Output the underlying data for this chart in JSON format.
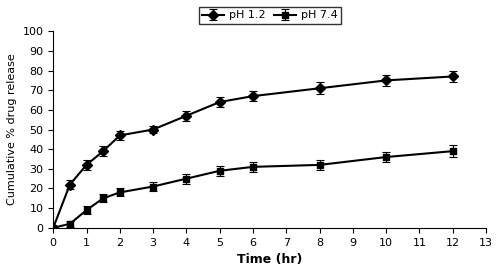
{
  "time_ph12": [
    0,
    0.5,
    1.0,
    1.5,
    2.0,
    3.0,
    4.0,
    5.0,
    6.0,
    8.0,
    10.0,
    12.0
  ],
  "values_ph12": [
    0,
    22,
    32,
    39,
    47,
    50,
    57,
    64,
    67,
    71,
    75,
    77
  ],
  "errors_ph12": [
    1.0,
    2.5,
    2.5,
    2.5,
    2.5,
    2.0,
    2.5,
    2.5,
    2.5,
    3.0,
    3.0,
    3.0
  ],
  "time_ph74": [
    0,
    0.5,
    1.0,
    1.5,
    2.0,
    3.0,
    4.0,
    5.0,
    6.0,
    8.0,
    10.0,
    12.0
  ],
  "values_ph74": [
    0,
    2,
    9,
    15,
    18,
    21,
    25,
    29,
    31,
    32,
    36,
    39
  ],
  "errors_ph74": [
    0.5,
    1.5,
    2.0,
    2.0,
    2.0,
    2.5,
    2.5,
    2.5,
    2.5,
    2.5,
    2.5,
    3.0
  ],
  "xlabel": "Time (hr)",
  "ylabel": "Cumulative % drug release",
  "legend_ph12": "pH 1.2",
  "legend_ph74": "pH 7.4",
  "xlim": [
    0,
    13
  ],
  "ylim": [
    0,
    100
  ],
  "xticks": [
    0,
    1,
    2,
    3,
    4,
    5,
    6,
    7,
    8,
    9,
    10,
    11,
    12,
    13
  ],
  "yticks": [
    0,
    10,
    20,
    30,
    40,
    50,
    60,
    70,
    80,
    90,
    100
  ],
  "line_color": "#000000",
  "marker_ph12": "D",
  "marker_ph74": "s",
  "markersize": 5,
  "linewidth": 1.5,
  "capsize": 3,
  "elinewidth": 0.8,
  "capthick": 0.8,
  "xlabel_fontsize": 9,
  "ylabel_fontsize": 8,
  "tick_fontsize": 8,
  "legend_fontsize": 8
}
